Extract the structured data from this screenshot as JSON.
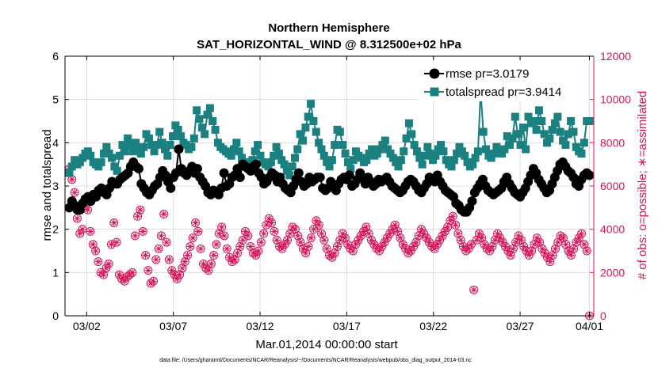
{
  "chart_data": {
    "type": "line",
    "title_line1": "Northern Hemisphere",
    "title_line2": "SAT_HORIZONTAL_WIND @ 8.312500e+02 hPa",
    "xlabel": "Mar.01,2014 00:00:00 start",
    "ylabel_left": "rmse and totalspread",
    "ylabel_right": "# of obs: o=possible; ∗=assimilated",
    "footer": "data file: /Users/gharamti/Documents/NCAR/Reanalysis/~/Documents/NCAR/Reanalysis/webpub/obs_diag_output_2014-03.nc",
    "x_ticks": [
      "03/02",
      "03/07",
      "03/12",
      "03/17",
      "03/22",
      "03/27",
      "04/01"
    ],
    "y_left_ticks": [
      "0",
      "1",
      "2",
      "3",
      "4",
      "5",
      "6"
    ],
    "y_right_ticks": [
      "0",
      "2000",
      "4000",
      "6000",
      "8000",
      "10000",
      "12000"
    ],
    "ylim_left": [
      0,
      6
    ],
    "ylim_right": [
      0,
      12000
    ],
    "xlim": [
      0.75,
      31.25
    ],
    "grid": true,
    "legend_position": "top-right",
    "colors": {
      "rmse": "#000000",
      "totalspread": "#1a8080",
      "obs": "#d4145a"
    },
    "series": [
      {
        "name": "rmse pr=3.0179",
        "marker": "circle",
        "values": [
          2.5,
          2.65,
          2.55,
          2.45,
          2.45,
          2.6,
          2.7,
          2.75,
          2.65,
          2.8,
          2.75,
          2.9,
          2.95,
          2.85,
          2.8,
          2.95,
          3.1,
          3.05,
          3.05,
          3.15,
          3.2,
          3.25,
          3.3,
          3.45,
          3.55,
          3.45,
          3.4,
          3.05,
          2.95,
          2.85,
          2.8,
          2.9,
          3.0,
          3.05,
          3.2,
          3.35,
          3.25,
          3.1,
          2.95,
          3.2,
          3.3,
          3.85,
          3.4,
          3.3,
          3.25,
          3.35,
          3.45,
          3.3,
          3.4,
          3.2,
          3.1,
          3.0,
          2.85,
          2.8,
          2.9,
          2.85,
          2.8,
          2.95,
          3.3,
          3.0,
          3.05,
          3.2,
          3.25,
          3.4,
          3.2,
          3.5,
          3.45,
          3.4,
          3.35,
          3.45,
          3.5,
          3.3,
          3.2,
          3.05,
          3.1,
          3.2,
          3.3,
          3.25,
          3.1,
          3.2,
          3.05,
          2.95,
          2.9,
          2.85,
          3.0,
          3.15,
          3.3,
          3.1,
          3.0,
          3.05,
          3.2,
          3.1,
          3.15,
          3.2,
          3.2,
          2.95,
          2.9,
          2.95,
          3.1,
          3.0,
          2.9,
          3.05,
          3.15,
          3.2,
          3.15,
          3.25,
          3.0,
          3.05,
          3.15,
          3.3,
          3.2,
          3.05,
          3.2,
          3.1,
          3.0,
          3.05,
          3.15,
          3.1,
          3.15,
          3.2,
          3.1,
          3.0,
          2.95,
          2.9,
          2.85,
          2.9,
          3.0,
          3.1,
          3.15,
          3.1,
          3.0,
          2.9,
          2.85,
          2.95,
          3.05,
          3.2,
          3.15,
          3.1,
          3.25,
          3.1,
          3.0,
          2.9,
          2.85,
          2.8,
          2.75,
          2.6,
          2.55,
          2.45,
          2.4,
          2.4,
          2.5,
          2.65,
          2.85,
          2.95,
          3.05,
          3.15,
          3.0,
          2.9,
          2.85,
          2.8,
          2.85,
          2.9,
          2.95,
          3.1,
          3.2,
          3.05,
          2.95,
          2.85,
          2.8,
          2.75,
          2.85,
          2.95,
          3.1,
          3.25,
          3.4,
          3.3,
          3.15,
          3.05,
          2.95,
          2.85,
          2.9,
          3.05,
          3.2,
          3.35,
          3.5,
          3.55,
          3.45,
          3.35,
          3.3,
          3.2,
          3.05,
          3.0,
          3.15,
          3.25,
          3.3,
          3.25
        ]
      },
      {
        "name": "totalspread pr=3.9414",
        "marker": "square",
        "values": [
          3.3,
          3.45,
          3.6,
          3.5,
          3.55,
          3.65,
          3.75,
          3.8,
          3.7,
          3.55,
          3.5,
          3.45,
          3.55,
          3.75,
          3.9,
          3.75,
          3.65,
          3.45,
          3.35,
          3.7,
          3.95,
          3.8,
          4.1,
          3.95,
          3.8,
          4.0,
          3.85,
          3.75,
          3.9,
          4.2,
          4.1,
          3.95,
          3.8,
          3.95,
          4.25,
          4.0,
          3.85,
          3.7,
          3.95,
          4.15,
          4.4,
          4.3,
          4.15,
          4.0,
          3.95,
          3.85,
          3.9,
          4.1,
          4.75,
          4.55,
          4.35,
          4.2,
          4.65,
          4.8,
          4.5,
          4.3,
          4.0,
          3.9,
          3.85,
          3.8,
          3.75,
          3.7,
          3.85,
          4.0,
          3.8,
          3.65,
          3.55,
          3.5,
          3.45,
          3.6,
          3.8,
          3.95,
          3.7,
          3.55,
          3.5,
          3.45,
          3.55,
          3.7,
          3.9,
          3.75,
          3.6,
          3.5,
          3.35,
          3.25,
          3.45,
          3.65,
          3.85,
          4.2,
          4.05,
          4.35,
          4.6,
          4.9,
          4.5,
          4.25,
          4.0,
          3.85,
          3.7,
          3.55,
          3.45,
          3.6,
          3.95,
          4.3,
          4.25,
          3.95,
          3.75,
          3.55,
          3.4,
          3.6,
          3.8,
          3.7,
          3.65,
          3.55,
          3.6,
          3.75,
          3.85,
          3.7,
          3.75,
          3.85,
          3.95,
          4.05,
          3.85,
          3.75,
          3.65,
          3.55,
          3.45,
          3.6,
          3.8,
          4.1,
          4.45,
          4.2,
          3.95,
          3.8,
          3.65,
          3.5,
          3.7,
          3.9,
          3.75,
          3.6,
          3.7,
          3.85,
          3.95,
          3.8,
          3.6,
          3.5,
          3.45,
          3.6,
          3.75,
          3.9,
          3.8,
          3.7,
          3.55,
          3.45,
          3.5,
          3.65,
          3.8,
          5.2,
          4.25,
          3.85,
          3.7,
          3.65,
          3.75,
          3.9,
          3.8,
          3.75,
          3.85,
          4.15,
          3.95,
          4.1,
          4.6,
          4.2,
          3.95,
          4.35,
          3.85,
          4.6,
          4.45,
          4.5,
          4.3,
          4.75,
          4.5,
          4.2,
          4.0,
          4.1,
          4.3,
          4.45,
          4.6,
          4.25,
          4.05,
          3.95,
          4.2,
          4.5,
          4.25,
          3.9,
          3.8,
          3.75,
          4.0,
          4.5,
          4.5
        ]
      },
      {
        "name": "possible",
        "marker": "circle-open",
        "values": [
          6800,
          6300,
          5700,
          4500,
          3800,
          4000,
          5100,
          4900,
          3900,
          3300,
          3000,
          2500,
          2000,
          1900,
          2200,
          2400,
          3300,
          4300,
          3400,
          1900,
          1700,
          1600,
          1800,
          1900,
          2000,
          3700,
          4600,
          4900,
          3900,
          2800,
          2100,
          1500,
          1600,
          2600,
          3100,
          3700,
          4700,
          3400,
          2600,
          2100,
          1900,
          1700,
          1900,
          2200,
          2500,
          2800,
          3200,
          3600,
          4300,
          3900,
          3100,
          2400,
          2200,
          2100,
          2400,
          2800,
          3300,
          3800,
          4100,
          3700,
          3100,
          2700,
          2500,
          2600,
          2900,
          3200,
          3500,
          3900,
          3700,
          3200,
          2900,
          2800,
          3000,
          3400,
          3800,
          4200,
          4500,
          4300,
          3900,
          3500,
          3200,
          3100,
          3300,
          3500,
          3800,
          4100,
          4000,
          3700,
          3400,
          3100,
          2900,
          3200,
          3600,
          4000,
          4400,
          4200,
          3800,
          3500,
          3100,
          2800,
          2700,
          2900,
          3200,
          3500,
          3800,
          3600,
          3300,
          3100,
          3000,
          3300,
          3500,
          3700,
          3900,
          4100,
          3800,
          3500,
          3300,
          3100,
          3000,
          3200,
          3400,
          3600,
          3800,
          4000,
          4200,
          3900,
          3600,
          3300,
          3100,
          2900,
          3000,
          3200,
          3400,
          3700,
          4000,
          3800,
          3600,
          3400,
          3200,
          3100,
          3300,
          3500,
          3700,
          3900,
          4100,
          4400,
          4600,
          4200,
          3800,
          3500,
          3200,
          3000,
          3100,
          3300,
          1200,
          3500,
          3800,
          3600,
          3300,
          3100,
          3000,
          3200,
          3500,
          3800,
          3600,
          3400,
          3200,
          3000,
          2800,
          3100,
          3400,
          3700,
          3500,
          3200,
          3000,
          2800,
          3000,
          3300,
          3600,
          3400,
          3100,
          2900,
          2700,
          2500,
          2800,
          3100,
          3400,
          3700,
          3600,
          3300,
          3000,
          2800,
          3100,
          3400,
          3600,
          3800,
          3300,
          3000,
          0
        ]
      }
    ]
  },
  "legend": {
    "rmse_label": "rmse pr=3.0179",
    "spread_label": "totalspread pr=3.9414"
  }
}
